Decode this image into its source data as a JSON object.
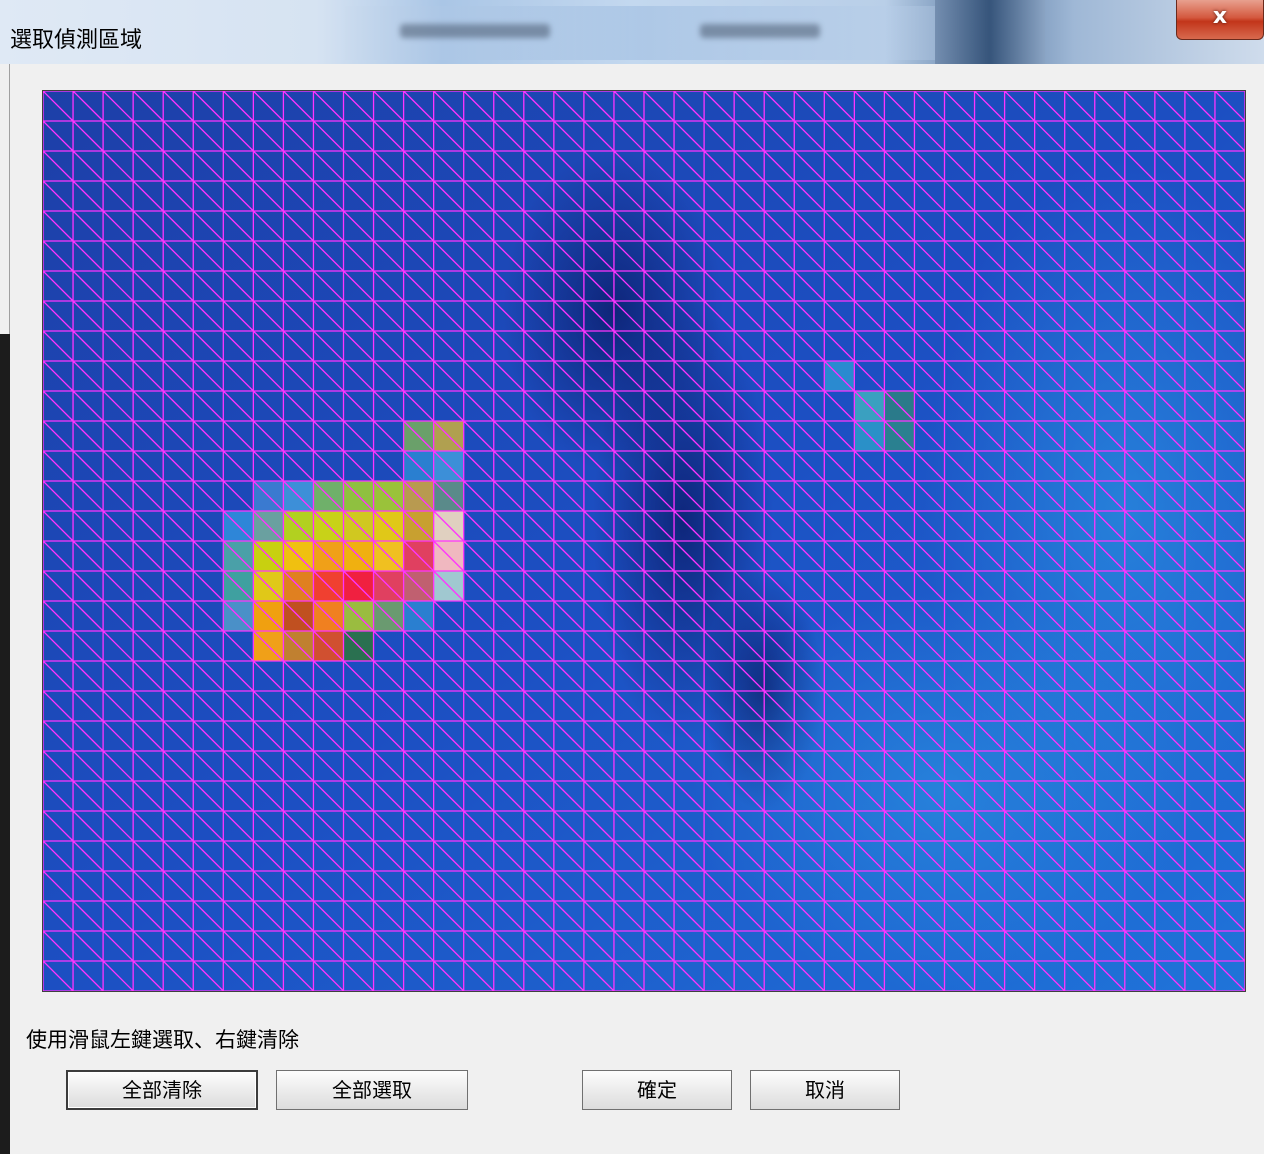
{
  "window": {
    "title": "選取偵測區域",
    "close_label": "x"
  },
  "thermal_view": {
    "grid_cols": 40,
    "grid_rows": 30,
    "grid_line_color": "#ff33ff",
    "base_color_dark": "#1d3fa8",
    "base_color_light": "#1f74d9"
  },
  "instruction_text": "使用滑鼠左鍵選取、右鍵清除",
  "buttons": {
    "clear_all": "全部清除",
    "select_all": "全部選取",
    "ok": "確定",
    "cancel": "取消"
  }
}
